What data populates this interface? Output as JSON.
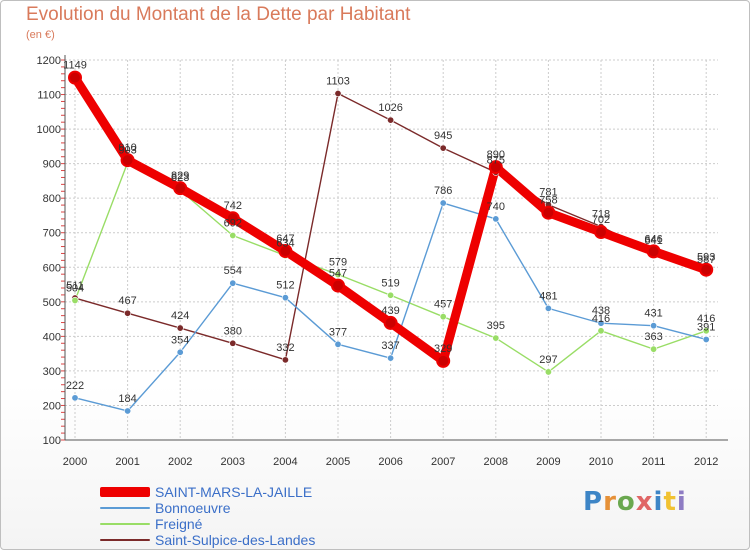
{
  "chart_data": {
    "type": "line",
    "title": "Evolution du Montant de la Dette par Habitant",
    "unit_label": "(en €)",
    "xlabel": "",
    "ylabel": "",
    "x": [
      "2000",
      "2001",
      "2002",
      "2003",
      "2004",
      "2005",
      "2006",
      "2007",
      "2008",
      "2009",
      "2010",
      "2011",
      "2012"
    ],
    "ylim": [
      100,
      1200
    ],
    "yticks": [
      100,
      200,
      300,
      400,
      500,
      600,
      700,
      800,
      900,
      1000,
      1100,
      1200
    ],
    "series": [
      {
        "name": "SAINT-MARS-LA-JAILLE",
        "color": "#ee0000",
        "values": [
          1149,
          910,
          829,
          742,
          647,
          547,
          439,
          329,
          890,
          758,
          702,
          646,
          593
        ]
      },
      {
        "name": "Bonnoeuvre",
        "color": "#5b9bd5",
        "values": [
          222,
          184,
          354,
          554,
          512,
          377,
          337,
          786,
          740,
          481,
          438,
          431,
          391
        ]
      },
      {
        "name": "Freigné",
        "color": "#99dd66",
        "values": [
          504,
          903,
          823,
          692,
          634,
          579,
          519,
          457,
          395,
          297,
          416,
          363,
          416
        ]
      },
      {
        "name": "Saint-Sulpice-des-Landes",
        "color": "#7b2a2a",
        "values": [
          511,
          467,
          424,
          380,
          332,
          1103,
          1026,
          945,
          875,
          781,
          718,
          641,
          587
        ]
      }
    ],
    "legend_position": "bottom-left"
  },
  "brand": {
    "logo_text": [
      "P",
      "r",
      "o",
      "x",
      "i",
      "t",
      "i"
    ]
  }
}
